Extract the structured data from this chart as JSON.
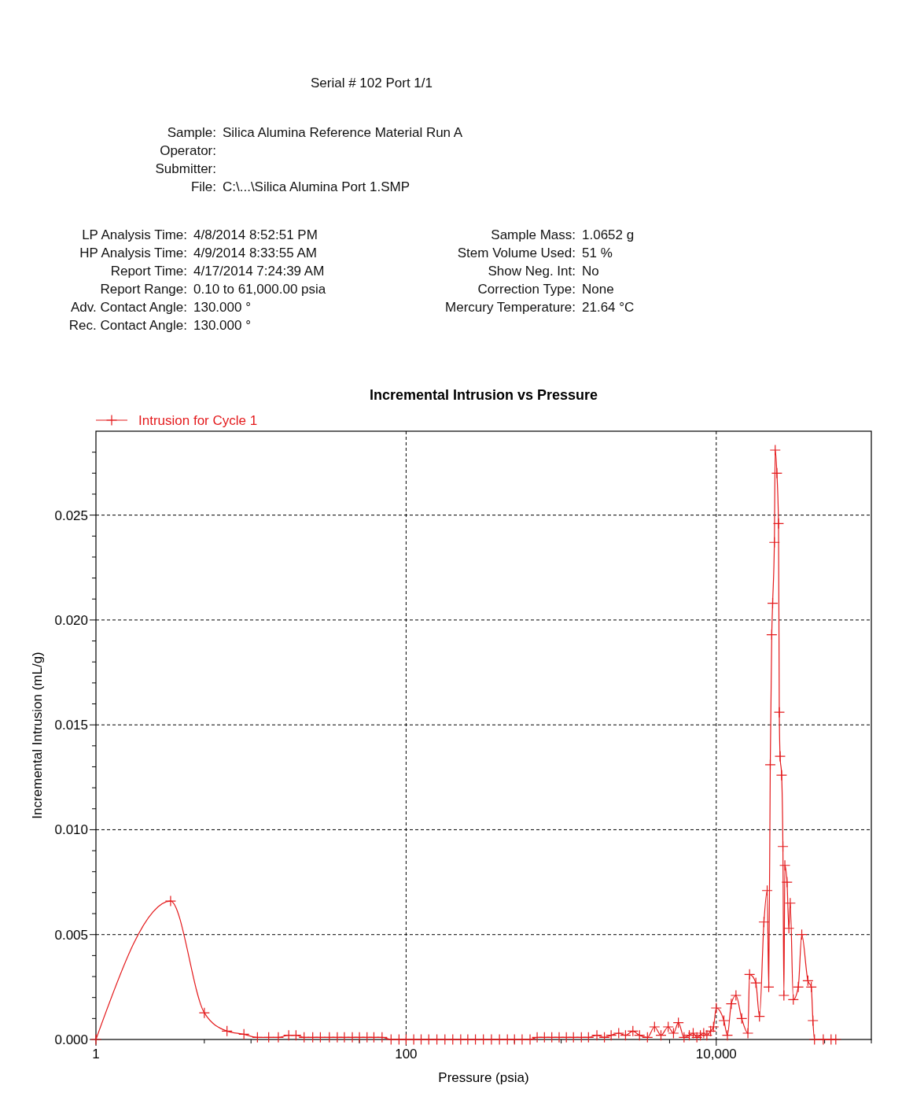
{
  "chart_data": {
    "type": "line",
    "title": "Incremental Intrusion vs Pressure",
    "xlabel": "Pressure (psia)",
    "ylabel": "Incremental Intrusion (mL/g)",
    "annotations": [
      "Serial # 102  Port 1/1",
      "Sample:  Silica Alumina Reference Material Run A",
      "Operator:",
      "Submitter:",
      "File:  C:\\...\\Silica Alumina Port 1.SMP",
      "LP Analysis Time:  4/8/2014 8:52:51 PM",
      "HP Analysis Time:  4/9/2014 8:33:55 AM",
      "Report Time:  4/17/2014 7:24:39 AM",
      "Report Range:  0.10 to 61,000.00 psia",
      "Adv. Contact Angle:  130.000 °",
      "Rec. Contact Angle:  130.000 °",
      "Sample Mass:  1.0652 g",
      "Stem Volume Used:  51 %",
      "Show Neg. Int:  No",
      "Correction Type:  None",
      "Mercury Temperature:  21.64 °C"
    ],
    "log": "x",
    "xlim": [
      1,
      100000
    ],
    "xticks": [
      1,
      {
        "value": 5,
        "label": null
      },
      {
        "value": 10,
        "label": null
      },
      {
        "value": 50,
        "label": null
      },
      100,
      {
        "value": 500,
        "label": null
      },
      {
        "value": 1000,
        "label": null
      },
      {
        "value": 5000,
        "label": null
      },
      {
        "value": 10000,
        "label": "10,000"
      },
      {
        "value": 50000,
        "label": null
      },
      {
        "value": 100000,
        "label": null
      }
    ],
    "ylim": [
      0,
      0.029
    ],
    "yticks": [
      {
        "value": 0,
        "label": "0.000"
      },
      {
        "value": 0.001,
        "label": null
      },
      {
        "value": 0.002,
        "label": null
      },
      {
        "value": 0.003,
        "label": null
      },
      {
        "value": 0.004,
        "label": null
      },
      {
        "value": 0.005,
        "label": "0.005"
      },
      {
        "value": 0.006,
        "label": null
      },
      {
        "value": 0.007,
        "label": null
      },
      {
        "value": 0.008,
        "label": null
      },
      {
        "value": 0.009,
        "label": null
      },
      {
        "value": 0.01,
        "label": "0.010"
      },
      {
        "value": 0.011,
        "label": null
      },
      {
        "value": 0.012,
        "label": null
      },
      {
        "value": 0.013,
        "label": null
      },
      {
        "value": 0.014,
        "label": null
      },
      {
        "value": 0.015,
        "label": "0.015"
      },
      {
        "value": 0.016,
        "label": null
      },
      {
        "value": 0.017,
        "label": null
      },
      {
        "value": 0.018,
        "label": null
      },
      {
        "value": 0.019,
        "label": null
      },
      {
        "value": 0.02,
        "label": "0.020"
      },
      {
        "value": 0.021,
        "label": null
      },
      {
        "value": 0.022,
        "label": null
      },
      {
        "value": 0.023,
        "label": null
      },
      {
        "value": 0.024,
        "label": null
      },
      {
        "value": 0.025,
        "label": "0.025"
      },
      {
        "value": 0.026,
        "label": null
      },
      {
        "value": 0.027,
        "label": null
      },
      {
        "value": 0.028,
        "label": null
      }
    ],
    "grid": true,
    "legend": "top left",
    "marker": "cross",
    "line_style": "solid",
    "series": [
      {
        "name": "Intrusion for Cycle 1",
        "color": "#e41a1c",
        "x": [
          1,
          3.03,
          5.0,
          7.0,
          9.0,
          11,
          13,
          15,
          17.5,
          19.5,
          22,
          25,
          28,
          32,
          36,
          40,
          45,
          50,
          56,
          62,
          70,
          80,
          90,
          100,
          112,
          125,
          140,
          158,
          178,
          200,
          225,
          250,
          280,
          315,
          355,
          400,
          450,
          500,
          560,
          630,
          700,
          780,
          870,
          970,
          1080,
          1200,
          1350,
          1500,
          1700,
          1900,
          2100,
          2350,
          2600,
          2900,
          3200,
          3600,
          4000,
          4400,
          4900,
          5300,
          5700,
          6200,
          6700,
          7100,
          7500,
          7900,
          8300,
          8700,
          9200,
          9600,
          10000,
          11200,
          11800,
          12500,
          13400,
          14600,
          16000,
          16400,
          18000,
          19000,
          20300,
          21300,
          21800,
          22300,
          22800,
          23100,
          23700,
          24000,
          24600,
          25200,
          25500,
          25800,
          26400,
          26900,
          27300,
          27700,
          28600,
          29400,
          30000,
          31400,
          33800,
          35600,
          39000,
          41000,
          42000,
          43000,
          49000,
          55000,
          59000
        ],
        "values": [
          0,
          0.0066,
          0.00127,
          0.0004,
          0.00025,
          0.0001,
          0.0001,
          0.0001,
          0.0002,
          0.0002,
          0.0001,
          0.0001,
          0.0001,
          0.0001,
          0.0001,
          0.0001,
          0.0001,
          0.0001,
          0.0001,
          0.0001,
          0.0001,
          0,
          0,
          0,
          0,
          0,
          0,
          0,
          0,
          0,
          0,
          0,
          0,
          0,
          0,
          0,
          0,
          0,
          0,
          0,
          0.0001,
          0.0001,
          0.0001,
          0.0001,
          0.0001,
          0.0001,
          0.0001,
          0.0001,
          0.0002,
          0.0001,
          0.0002,
          0.0003,
          0.0002,
          0.0004,
          0.0002,
          0.0001,
          0.0006,
          0.0002,
          0.0006,
          0.0003,
          0.0008,
          0.0001,
          0.0002,
          0.0003,
          0.0001,
          0.0002,
          0.0003,
          0.0002,
          0.0004,
          0.0006,
          0.0015,
          0.0009,
          0.0002,
          0.0017,
          0.0021,
          0.001,
          0.0003,
          0.0031,
          0.0027,
          0.0011,
          0.0056,
          0.0071,
          0.0025,
          0.0131,
          0.0193,
          0.0208,
          0.0237,
          0.0281,
          0.027,
          0.0246,
          0.0156,
          0.0135,
          0.0126,
          0.0092,
          0.0021,
          0.0083,
          0.0075,
          0.0053,
          0.0065,
          0.0019,
          0.0025,
          0.005,
          0.0028,
          0.0025,
          0.0009,
          0,
          0,
          0,
          0
        ]
      }
    ]
  }
}
